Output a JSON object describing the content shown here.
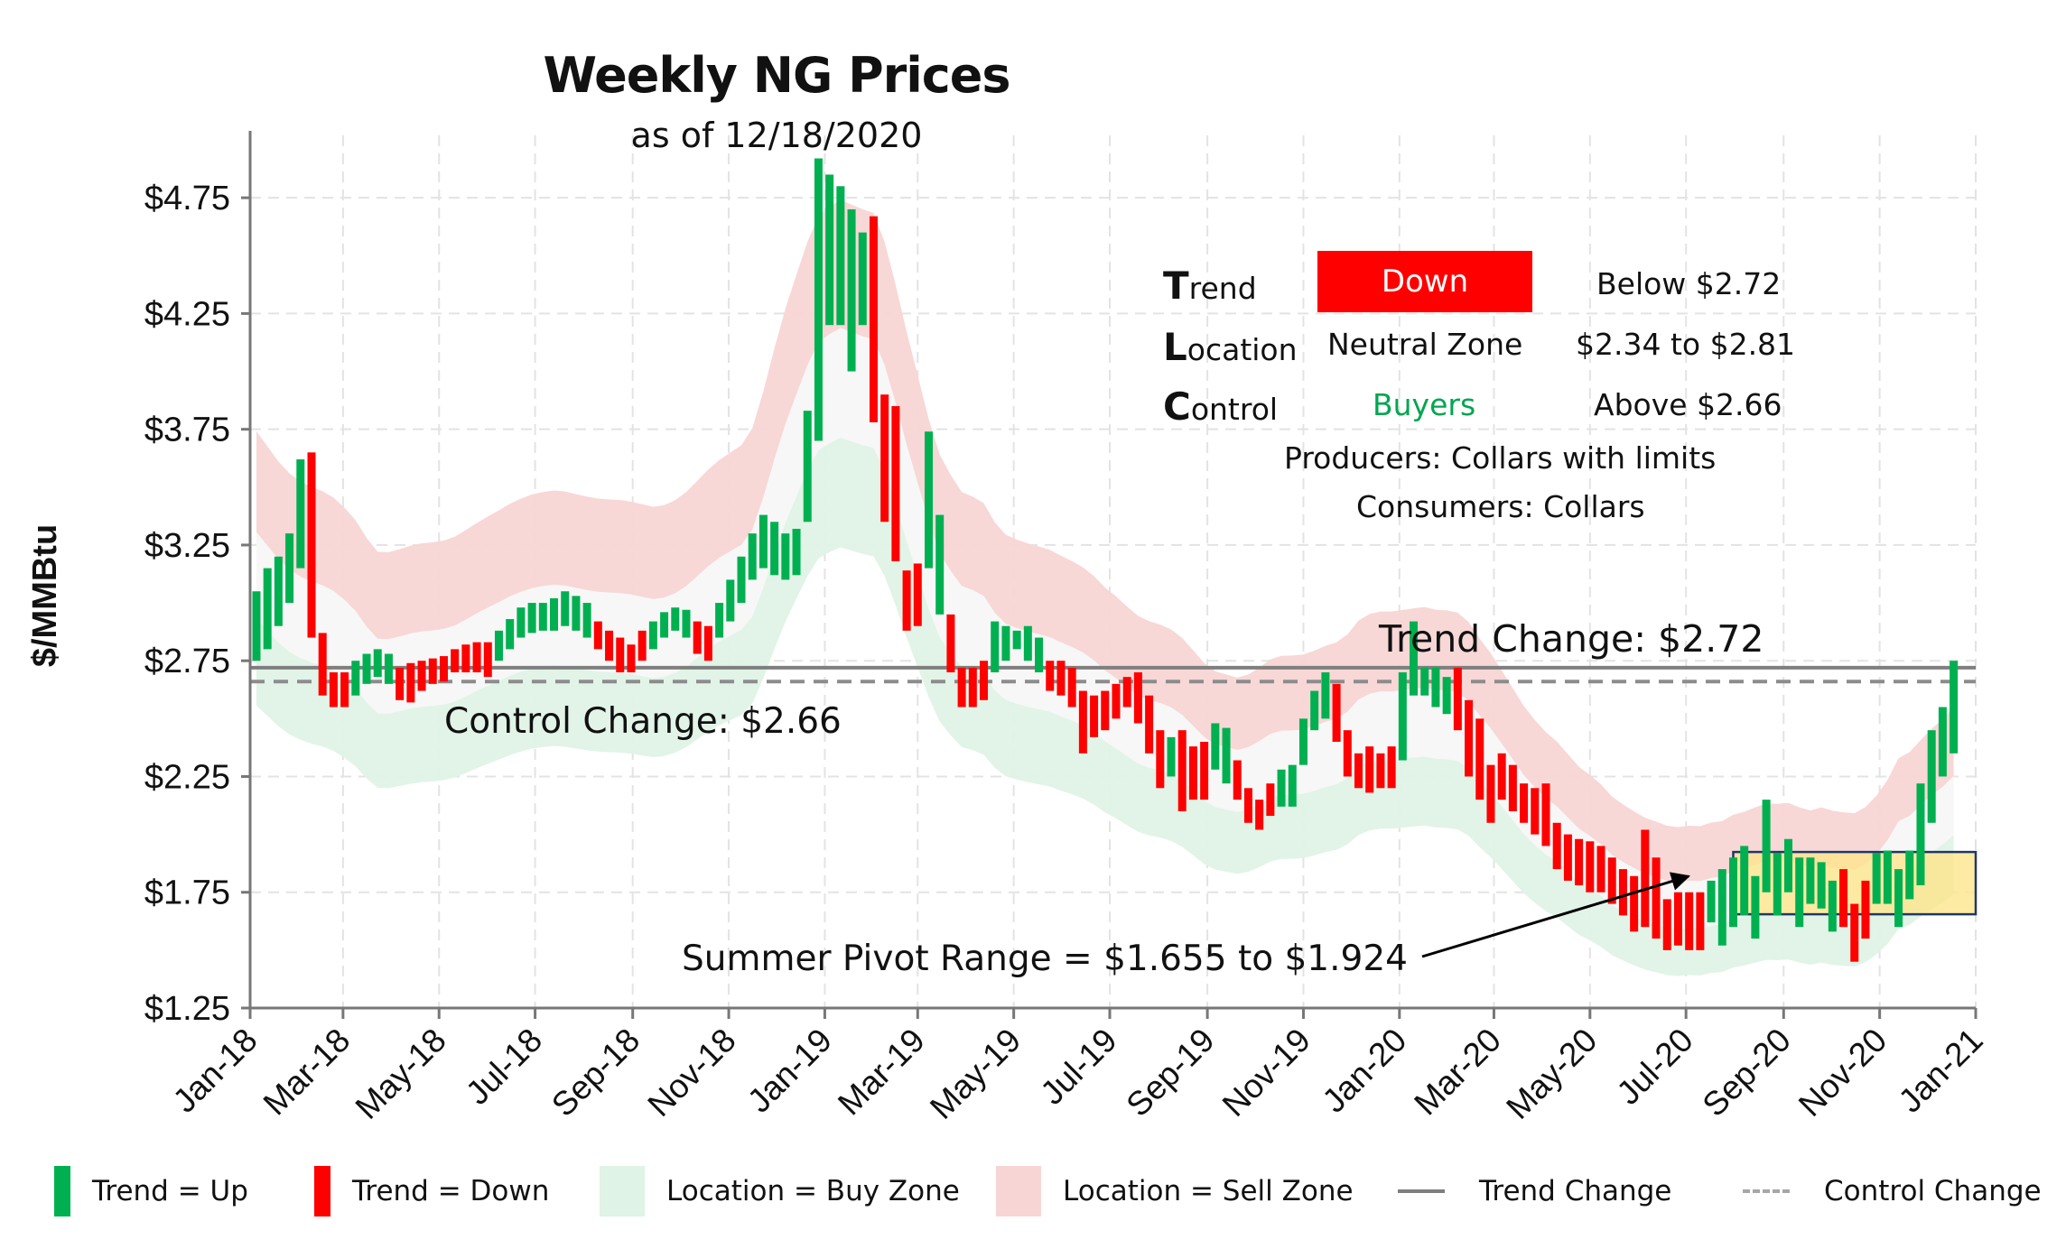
{
  "title": "Weekly NG Prices",
  "subtitle": "as of 12/18/2020",
  "info_panel": {
    "rows": [
      {
        "cap": "T",
        "rest": "rend",
        "status": "Down",
        "range": "Below $2.72"
      },
      {
        "cap": "L",
        "rest": "ocation",
        "status": "Neutral Zone",
        "range": "$2.34 to $2.81"
      },
      {
        "cap": "C",
        "rest": "ontrol",
        "status": "Buyers",
        "range": "Above $2.66"
      }
    ],
    "producers": "Producers: Collars with limits",
    "consumers": "Consumers: Collars"
  },
  "annotations": {
    "trend_change": "Trend Change: $2.72",
    "control_change": "Control Change: $2.66",
    "pivot": "Summer Pivot Range = $1.655 to $1.924"
  },
  "legend": {
    "trend_up": "Trend = Up",
    "trend_down": "Trend = Down",
    "buy_zone": "Location = Buy Zone",
    "sell_zone": "Location = Sell Zone",
    "trend_change": "Trend Change",
    "control_change": "Control Change"
  },
  "colors": {
    "up": "#00b050",
    "down": "#ff0000",
    "buy_zone": "#dff3e6",
    "sell_zone": "#f8d5d5",
    "neutral": "#f7f7f7",
    "trend_line": "#7f7f7f",
    "control_line": "#8c8c8c",
    "pivot_fill": "#fde58c",
    "pivot_border": "#1f3864"
  },
  "chart_data": {
    "type": "bar",
    "ylabel": "$/MMBtu",
    "ylim": [
      1.25,
      5.0
    ],
    "yticks": [
      "$1.25",
      "$1.75",
      "$2.25",
      "$2.75",
      "$3.25",
      "$3.75",
      "$4.25",
      "$4.75"
    ],
    "ytick_values": [
      1.25,
      1.75,
      2.25,
      2.75,
      3.25,
      3.75,
      4.25,
      4.75
    ],
    "xticks": [
      "Jan-18",
      "Mar-18",
      "May-18",
      "Jul-18",
      "Sep-18",
      "Nov-18",
      "Jan-19",
      "Mar-19",
      "May-19",
      "Jul-19",
      "Sep-19",
      "Nov-19",
      "Jan-20",
      "Mar-20",
      "May-20",
      "Jul-20",
      "Sep-20",
      "Nov-20",
      "Jan-21"
    ],
    "grid": true,
    "trend_change": 2.72,
    "control_change": 2.66,
    "pivot_range": [
      1.655,
      1.924
    ],
    "pivot_start": "2020-07-31",
    "pivot_end": "2021-01-01",
    "weekly_bars": [
      {
        "date": "2018-01-05",
        "low": 2.75,
        "high": 3.05,
        "trend": "up"
      },
      {
        "date": "2018-01-12",
        "low": 2.8,
        "high": 3.15,
        "trend": "up"
      },
      {
        "date": "2018-01-19",
        "low": 2.9,
        "high": 3.2,
        "trend": "up"
      },
      {
        "date": "2018-01-26",
        "low": 3.0,
        "high": 3.3,
        "trend": "up"
      },
      {
        "date": "2018-02-02",
        "low": 3.15,
        "high": 3.62,
        "trend": "up"
      },
      {
        "date": "2018-02-09",
        "low": 2.85,
        "high": 3.65,
        "trend": "down"
      },
      {
        "date": "2018-02-16",
        "low": 2.6,
        "high": 2.87,
        "trend": "down"
      },
      {
        "date": "2018-02-23",
        "low": 2.55,
        "high": 2.7,
        "trend": "down"
      },
      {
        "date": "2018-03-02",
        "low": 2.55,
        "high": 2.7,
        "trend": "down"
      },
      {
        "date": "2018-03-09",
        "low": 2.6,
        "high": 2.75,
        "trend": "up"
      },
      {
        "date": "2018-03-16",
        "low": 2.65,
        "high": 2.78,
        "trend": "up"
      },
      {
        "date": "2018-03-23",
        "low": 2.68,
        "high": 2.8,
        "trend": "up"
      },
      {
        "date": "2018-03-30",
        "low": 2.65,
        "high": 2.78,
        "trend": "up"
      },
      {
        "date": "2018-04-06",
        "low": 2.58,
        "high": 2.72,
        "trend": "down"
      },
      {
        "date": "2018-04-13",
        "low": 2.57,
        "high": 2.74,
        "trend": "down"
      },
      {
        "date": "2018-04-20",
        "low": 2.62,
        "high": 2.75,
        "trend": "down"
      },
      {
        "date": "2018-04-27",
        "low": 2.65,
        "high": 2.76,
        "trend": "down"
      },
      {
        "date": "2018-05-04",
        "low": 2.66,
        "high": 2.77,
        "trend": "down"
      },
      {
        "date": "2018-05-11",
        "low": 2.7,
        "high": 2.8,
        "trend": "down"
      },
      {
        "date": "2018-05-18",
        "low": 2.7,
        "high": 2.82,
        "trend": "down"
      },
      {
        "date": "2018-05-25",
        "low": 2.7,
        "high": 2.83,
        "trend": "down"
      },
      {
        "date": "2018-06-01",
        "low": 2.68,
        "high": 2.83,
        "trend": "down"
      },
      {
        "date": "2018-06-08",
        "low": 2.75,
        "high": 2.88,
        "trend": "up"
      },
      {
        "date": "2018-06-15",
        "low": 2.8,
        "high": 2.93,
        "trend": "up"
      },
      {
        "date": "2018-06-22",
        "low": 2.85,
        "high": 2.98,
        "trend": "up"
      },
      {
        "date": "2018-06-29",
        "low": 2.87,
        "high": 3.0,
        "trend": "up"
      },
      {
        "date": "2018-07-06",
        "low": 2.88,
        "high": 3.0,
        "trend": "up"
      },
      {
        "date": "2018-07-13",
        "low": 2.88,
        "high": 3.02,
        "trend": "up"
      },
      {
        "date": "2018-07-20",
        "low": 2.9,
        "high": 3.05,
        "trend": "up"
      },
      {
        "date": "2018-07-27",
        "low": 2.88,
        "high": 3.03,
        "trend": "up"
      },
      {
        "date": "2018-08-03",
        "low": 2.85,
        "high": 3.0,
        "trend": "up"
      },
      {
        "date": "2018-08-10",
        "low": 2.8,
        "high": 2.92,
        "trend": "down"
      },
      {
        "date": "2018-08-17",
        "low": 2.75,
        "high": 2.88,
        "trend": "down"
      },
      {
        "date": "2018-08-24",
        "low": 2.7,
        "high": 2.85,
        "trend": "down"
      },
      {
        "date": "2018-08-31",
        "low": 2.7,
        "high": 2.82,
        "trend": "down"
      },
      {
        "date": "2018-09-07",
        "low": 2.75,
        "high": 2.88,
        "trend": "down"
      },
      {
        "date": "2018-09-14",
        "low": 2.8,
        "high": 2.92,
        "trend": "up"
      },
      {
        "date": "2018-09-21",
        "low": 2.85,
        "high": 2.96,
        "trend": "up"
      },
      {
        "date": "2018-09-28",
        "low": 2.88,
        "high": 2.98,
        "trend": "up"
      },
      {
        "date": "2018-10-05",
        "low": 2.85,
        "high": 2.97,
        "trend": "up"
      },
      {
        "date": "2018-10-12",
        "low": 2.78,
        "high": 2.92,
        "trend": "down"
      },
      {
        "date": "2018-10-19",
        "low": 2.75,
        "high": 2.9,
        "trend": "down"
      },
      {
        "date": "2018-10-26",
        "low": 2.85,
        "high": 3.0,
        "trend": "up"
      },
      {
        "date": "2018-11-02",
        "low": 2.92,
        "high": 3.1,
        "trend": "up"
      },
      {
        "date": "2018-11-09",
        "low": 3.0,
        "high": 3.2,
        "trend": "up"
      },
      {
        "date": "2018-11-16",
        "low": 3.1,
        "high": 3.3,
        "trend": "up"
      },
      {
        "date": "2018-11-23",
        "low": 3.15,
        "high": 3.38,
        "trend": "up"
      },
      {
        "date": "2018-11-30",
        "low": 3.12,
        "high": 3.35,
        "trend": "up"
      },
      {
        "date": "2018-12-07",
        "low": 3.1,
        "high": 3.3,
        "trend": "up"
      },
      {
        "date": "2018-12-14",
        "low": 3.12,
        "high": 3.32,
        "trend": "up"
      },
      {
        "date": "2018-12-21",
        "low": 3.35,
        "high": 3.83,
        "trend": "up"
      },
      {
        "date": "2018-12-28",
        "low": 3.7,
        "high": 4.92,
        "trend": "up"
      },
      {
        "date": "2019-01-04",
        "low": 4.2,
        "high": 4.85,
        "trend": "up"
      },
      {
        "date": "2019-01-11",
        "low": 4.2,
        "high": 4.8,
        "trend": "up"
      },
      {
        "date": "2019-01-18",
        "low": 4.0,
        "high": 4.7,
        "trend": "up"
      },
      {
        "date": "2019-01-25",
        "low": 4.2,
        "high": 4.6,
        "trend": "up"
      },
      {
        "date": "2019-02-01",
        "low": 3.78,
        "high": 4.67,
        "trend": "down"
      },
      {
        "date": "2019-02-08",
        "low": 3.35,
        "high": 3.9,
        "trend": "down"
      },
      {
        "date": "2019-02-15",
        "low": 3.18,
        "high": 3.85,
        "trend": "down"
      },
      {
        "date": "2019-02-22",
        "low": 2.88,
        "high": 3.14,
        "trend": "down"
      },
      {
        "date": "2019-03-01",
        "low": 2.9,
        "high": 3.17,
        "trend": "down"
      },
      {
        "date": "2019-03-08",
        "low": 3.15,
        "high": 3.74,
        "trend": "up"
      },
      {
        "date": "2019-03-15",
        "low": 2.95,
        "high": 3.38,
        "trend": "up"
      },
      {
        "date": "2019-03-22",
        "low": 2.7,
        "high": 2.95,
        "trend": "down"
      },
      {
        "date": "2019-03-29",
        "low": 2.55,
        "high": 2.72,
        "trend": "down"
      },
      {
        "date": "2019-04-05",
        "low": 2.55,
        "high": 2.72,
        "trend": "down"
      },
      {
        "date": "2019-04-12",
        "low": 2.58,
        "high": 2.75,
        "trend": "down"
      },
      {
        "date": "2019-04-19",
        "low": 2.7,
        "high": 2.92,
        "trend": "up"
      },
      {
        "date": "2019-04-26",
        "low": 2.75,
        "high": 2.9,
        "trend": "up"
      },
      {
        "date": "2019-05-03",
        "low": 2.8,
        "high": 2.88,
        "trend": "up"
      },
      {
        "date": "2019-05-10",
        "low": 2.75,
        "high": 2.9,
        "trend": "up"
      },
      {
        "date": "2019-05-17",
        "low": 2.7,
        "high": 2.85,
        "trend": "up"
      },
      {
        "date": "2019-05-24",
        "low": 2.62,
        "high": 2.75,
        "trend": "down"
      },
      {
        "date": "2019-05-31",
        "low": 2.6,
        "high": 2.75,
        "trend": "down"
      },
      {
        "date": "2019-06-07",
        "low": 2.55,
        "high": 2.72,
        "trend": "down"
      },
      {
        "date": "2019-06-14",
        "low": 2.35,
        "high": 2.62,
        "trend": "down"
      },
      {
        "date": "2019-06-21",
        "low": 2.42,
        "high": 2.6,
        "trend": "down"
      },
      {
        "date": "2019-06-28",
        "low": 2.45,
        "high": 2.62,
        "trend": "down"
      },
      {
        "date": "2019-07-05",
        "low": 2.5,
        "high": 2.65,
        "trend": "down"
      },
      {
        "date": "2019-07-12",
        "low": 2.55,
        "high": 2.68,
        "trend": "down"
      },
      {
        "date": "2019-07-19",
        "low": 2.48,
        "high": 2.7,
        "trend": "down"
      },
      {
        "date": "2019-07-26",
        "low": 2.35,
        "high": 2.6,
        "trend": "down"
      },
      {
        "date": "2019-08-02",
        "low": 2.2,
        "high": 2.45,
        "trend": "down"
      },
      {
        "date": "2019-08-09",
        "low": 2.25,
        "high": 2.42,
        "trend": "up"
      },
      {
        "date": "2019-08-16",
        "low": 2.1,
        "high": 2.45,
        "trend": "down"
      },
      {
        "date": "2019-08-23",
        "low": 2.15,
        "high": 2.38,
        "trend": "down"
      },
      {
        "date": "2019-08-30",
        "low": 2.15,
        "high": 2.4,
        "trend": "down"
      },
      {
        "date": "2019-09-06",
        "low": 2.28,
        "high": 2.48,
        "trend": "up"
      },
      {
        "date": "2019-09-13",
        "low": 2.22,
        "high": 2.46,
        "trend": "up"
      },
      {
        "date": "2019-09-20",
        "low": 2.15,
        "high": 2.32,
        "trend": "down"
      },
      {
        "date": "2019-09-27",
        "low": 2.05,
        "high": 2.2,
        "trend": "down"
      },
      {
        "date": "2019-10-04",
        "low": 2.02,
        "high": 2.15,
        "trend": "down"
      },
      {
        "date": "2019-10-11",
        "low": 2.08,
        "high": 2.22,
        "trend": "down"
      },
      {
        "date": "2019-10-18",
        "low": 2.12,
        "high": 2.28,
        "trend": "up"
      },
      {
        "date": "2019-10-25",
        "low": 2.12,
        "high": 2.3,
        "trend": "up"
      },
      {
        "date": "2019-11-01",
        "low": 2.3,
        "high": 2.5,
        "trend": "up"
      },
      {
        "date": "2019-11-08",
        "low": 2.45,
        "high": 2.62,
        "trend": "up"
      },
      {
        "date": "2019-11-15",
        "low": 2.5,
        "high": 2.7,
        "trend": "up"
      },
      {
        "date": "2019-11-22",
        "low": 2.4,
        "high": 2.65,
        "trend": "down"
      },
      {
        "date": "2019-11-29",
        "low": 2.25,
        "high": 2.45,
        "trend": "down"
      },
      {
        "date": "2019-12-06",
        "low": 2.2,
        "high": 2.35,
        "trend": "down"
      },
      {
        "date": "2019-12-13",
        "low": 2.18,
        "high": 2.38,
        "trend": "down"
      },
      {
        "date": "2019-12-20",
        "low": 2.2,
        "high": 2.35,
        "trend": "down"
      },
      {
        "date": "2019-12-27",
        "low": 2.2,
        "high": 2.38,
        "trend": "down"
      },
      {
        "date": "2020-01-03",
        "low": 2.32,
        "high": 2.7,
        "trend": "up"
      },
      {
        "date": "2020-01-10",
        "low": 2.6,
        "high": 2.92,
        "trend": "up"
      },
      {
        "date": "2020-01-17",
        "low": 2.6,
        "high": 2.72,
        "trend": "up"
      },
      {
        "date": "2020-01-24",
        "low": 2.55,
        "high": 2.72,
        "trend": "up"
      },
      {
        "date": "2020-01-31",
        "low": 2.52,
        "high": 2.68,
        "trend": "up"
      },
      {
        "date": "2020-02-07",
        "low": 2.45,
        "high": 2.72,
        "trend": "down"
      },
      {
        "date": "2020-02-14",
        "low": 2.25,
        "high": 2.58,
        "trend": "down"
      },
      {
        "date": "2020-02-21",
        "low": 2.15,
        "high": 2.5,
        "trend": "down"
      },
      {
        "date": "2020-02-28",
        "low": 2.05,
        "high": 2.3,
        "trend": "down"
      },
      {
        "date": "2020-03-06",
        "low": 2.15,
        "high": 2.35,
        "trend": "down"
      },
      {
        "date": "2020-03-13",
        "low": 2.1,
        "high": 2.3,
        "trend": "down"
      },
      {
        "date": "2020-03-20",
        "low": 2.05,
        "high": 2.22,
        "trend": "down"
      },
      {
        "date": "2020-03-27",
        "low": 2.0,
        "high": 2.2,
        "trend": "down"
      },
      {
        "date": "2020-04-03",
        "low": 1.95,
        "high": 2.22,
        "trend": "down"
      },
      {
        "date": "2020-04-10",
        "low": 1.85,
        "high": 2.05,
        "trend": "down"
      },
      {
        "date": "2020-04-17",
        "low": 1.8,
        "high": 2.0,
        "trend": "down"
      },
      {
        "date": "2020-04-24",
        "low": 1.78,
        "high": 1.98,
        "trend": "down"
      },
      {
        "date": "2020-05-01",
        "low": 1.75,
        "high": 1.97,
        "trend": "down"
      },
      {
        "date": "2020-05-08",
        "low": 1.75,
        "high": 1.95,
        "trend": "down"
      },
      {
        "date": "2020-05-15",
        "low": 1.7,
        "high": 1.9,
        "trend": "down"
      },
      {
        "date": "2020-05-22",
        "low": 1.65,
        "high": 1.85,
        "trend": "down"
      },
      {
        "date": "2020-05-29",
        "low": 1.58,
        "high": 1.82,
        "trend": "down"
      },
      {
        "date": "2020-06-05",
        "low": 1.6,
        "high": 2.02,
        "trend": "down"
      },
      {
        "date": "2020-06-12",
        "low": 1.55,
        "high": 1.9,
        "trend": "down"
      },
      {
        "date": "2020-06-19",
        "low": 1.5,
        "high": 1.72,
        "trend": "down"
      },
      {
        "date": "2020-06-26",
        "low": 1.52,
        "high": 1.75,
        "trend": "down"
      },
      {
        "date": "2020-07-03",
        "low": 1.5,
        "high": 1.75,
        "trend": "down"
      },
      {
        "date": "2020-07-10",
        "low": 1.5,
        "high": 1.75,
        "trend": "down"
      },
      {
        "date": "2020-07-17",
        "low": 1.62,
        "high": 1.8,
        "trend": "up"
      },
      {
        "date": "2020-07-24",
        "low": 1.52,
        "high": 1.85,
        "trend": "up"
      },
      {
        "date": "2020-07-31",
        "low": 1.6,
        "high": 1.9,
        "trend": "up"
      },
      {
        "date": "2020-08-07",
        "low": 1.65,
        "high": 1.95,
        "trend": "up"
      },
      {
        "date": "2020-08-14",
        "low": 1.55,
        "high": 1.82,
        "trend": "up"
      },
      {
        "date": "2020-08-21",
        "low": 1.75,
        "high": 2.15,
        "trend": "up"
      },
      {
        "date": "2020-08-28",
        "low": 1.65,
        "high": 1.92,
        "trend": "up"
      },
      {
        "date": "2020-09-04",
        "low": 1.75,
        "high": 1.98,
        "trend": "up"
      },
      {
        "date": "2020-09-11",
        "low": 1.6,
        "high": 1.9,
        "trend": "up"
      },
      {
        "date": "2020-09-18",
        "low": 1.7,
        "high": 1.9,
        "trend": "up"
      },
      {
        "date": "2020-09-25",
        "low": 1.68,
        "high": 1.88,
        "trend": "up"
      },
      {
        "date": "2020-10-02",
        "low": 1.58,
        "high": 1.8,
        "trend": "up"
      },
      {
        "date": "2020-10-09",
        "low": 1.6,
        "high": 1.85,
        "trend": "down"
      },
      {
        "date": "2020-10-16",
        "low": 1.45,
        "high": 1.7,
        "trend": "down"
      },
      {
        "date": "2020-10-23",
        "low": 1.55,
        "high": 1.8,
        "trend": "down"
      },
      {
        "date": "2020-10-30",
        "low": 1.7,
        "high": 1.92,
        "trend": "up"
      },
      {
        "date": "2020-11-06",
        "low": 1.7,
        "high": 1.93,
        "trend": "up"
      },
      {
        "date": "2020-11-13",
        "low": 1.6,
        "high": 1.85,
        "trend": "up"
      },
      {
        "date": "2020-11-20",
        "low": 1.72,
        "high": 1.93,
        "trend": "up"
      },
      {
        "date": "2020-11-27",
        "low": 1.78,
        "high": 2.22,
        "trend": "up"
      },
      {
        "date": "2020-12-04",
        "low": 2.05,
        "high": 2.45,
        "trend": "up"
      },
      {
        "date": "2020-12-11",
        "low": 2.25,
        "high": 2.55,
        "trend": "up"
      },
      {
        "date": "2020-12-18",
        "low": 2.35,
        "high": 2.75,
        "trend": "up"
      }
    ]
  }
}
